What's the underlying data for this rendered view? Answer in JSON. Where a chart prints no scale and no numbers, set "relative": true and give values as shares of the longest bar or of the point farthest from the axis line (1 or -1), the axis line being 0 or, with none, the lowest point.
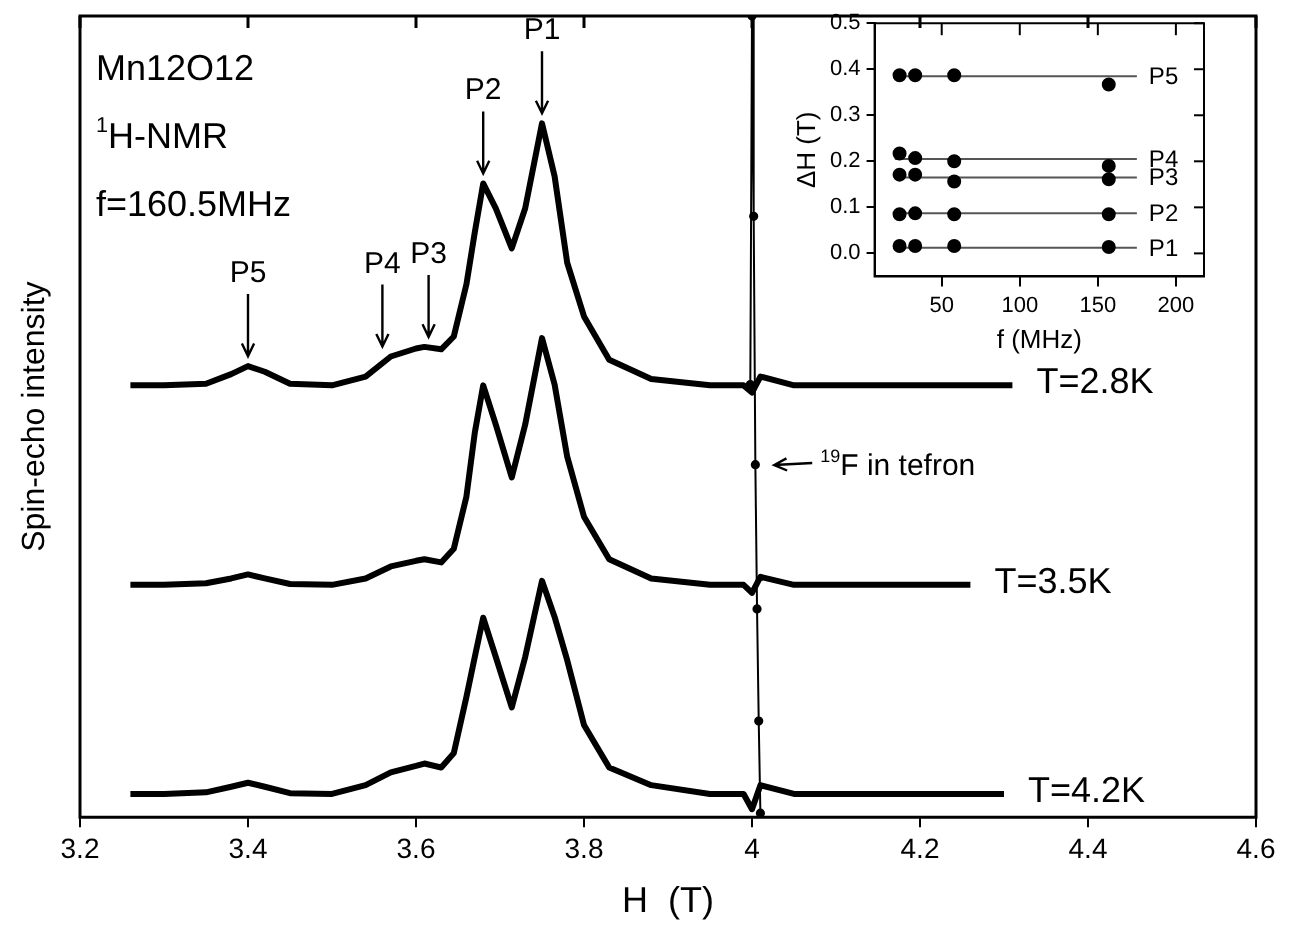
{
  "chart_data": [
    {
      "type": "line",
      "relative": true,
      "xlim": [
        3.2,
        4.6
      ],
      "xticks": [
        3.2,
        3.4,
        3.6,
        3.8,
        4.0,
        4.2,
        4.4,
        4.6
      ],
      "xlabel": "H  (T)",
      "ylabel": "Spin-echo intensity",
      "marker": "none",
      "series": [
        {
          "name": "T=2.8K",
          "color": "#000000",
          "x": [
            3.26,
            3.3,
            3.35,
            3.38,
            3.4,
            3.42,
            3.45,
            3.5,
            3.54,
            3.57,
            3.6,
            3.61,
            3.63,
            3.645,
            3.66,
            3.67,
            3.68,
            3.695,
            3.714,
            3.73,
            3.75,
            3.765,
            3.78,
            3.8,
            3.83,
            3.88,
            3.95,
            3.99,
            4.0,
            4.01,
            4.05,
            4.15,
            4.31
          ],
          "values": [
            0.539,
            0.539,
            0.541,
            0.553,
            0.563,
            0.556,
            0.541,
            0.539,
            0.55,
            0.575,
            0.585,
            0.587,
            0.584,
            0.6,
            0.665,
            0.73,
            0.791,
            0.76,
            0.71,
            0.76,
            0.866,
            0.8,
            0.692,
            0.625,
            0.571,
            0.547,
            0.539,
            0.539,
            0.53,
            0.55,
            0.539,
            0.539,
            0.539
          ]
        },
        {
          "name": "T=3.5K",
          "color": "#000000",
          "x": [
            3.26,
            3.3,
            3.35,
            3.38,
            3.4,
            3.42,
            3.45,
            3.5,
            3.54,
            3.57,
            3.6,
            3.61,
            3.63,
            3.645,
            3.66,
            3.67,
            3.68,
            3.695,
            3.714,
            3.73,
            3.75,
            3.765,
            3.78,
            3.8,
            3.83,
            3.88,
            3.95,
            3.99,
            4.0,
            4.01,
            4.05,
            4.15,
            4.26
          ],
          "values": [
            0.29,
            0.29,
            0.292,
            0.298,
            0.303,
            0.298,
            0.291,
            0.29,
            0.298,
            0.313,
            0.32,
            0.322,
            0.318,
            0.335,
            0.4,
            0.48,
            0.539,
            0.49,
            0.424,
            0.49,
            0.598,
            0.54,
            0.45,
            0.375,
            0.322,
            0.298,
            0.29,
            0.29,
            0.28,
            0.3,
            0.29,
            0.29,
            0.29
          ]
        },
        {
          "name": "T=4.2K",
          "color": "#000000",
          "x": [
            3.26,
            3.3,
            3.35,
            3.38,
            3.4,
            3.42,
            3.45,
            3.5,
            3.54,
            3.57,
            3.6,
            3.61,
            3.63,
            3.645,
            3.66,
            3.67,
            3.68,
            3.695,
            3.714,
            3.73,
            3.75,
            3.765,
            3.78,
            3.8,
            3.83,
            3.88,
            3.95,
            3.99,
            4.0,
            4.01,
            4.05,
            4.15,
            4.3
          ],
          "values": [
            0.029,
            0.029,
            0.031,
            0.038,
            0.043,
            0.038,
            0.03,
            0.029,
            0.04,
            0.056,
            0.064,
            0.067,
            0.062,
            0.08,
            0.15,
            0.2,
            0.249,
            0.2,
            0.137,
            0.2,
            0.295,
            0.25,
            0.196,
            0.115,
            0.062,
            0.04,
            0.029,
            0.029,
            0.01,
            0.04,
            0.029,
            0.029,
            0.029
          ]
        },
        {
          "color": "#000000",
          "marker": "circle",
          "x": [
            3.998,
            4.0,
            4.002,
            4.004,
            4.006,
            4.008,
            4.01
          ],
          "values": [
            0.54,
            1,
            0.75,
            0.44,
            0.26,
            0.12,
            0.005
          ]
        }
      ],
      "annotations": [
        "Mn12O12",
        "$^{1}$H-NMR",
        "f=160.5MHz",
        {
          "text": "P5",
          "x": 3.4,
          "y": 0.563
        },
        {
          "text": "P4",
          "x": 3.56,
          "y": 0.575
        },
        {
          "text": "P3",
          "x": 3.615,
          "y": 0.587
        },
        {
          "text": "P2",
          "x": 3.68,
          "y": 0.791
        },
        {
          "text": "P1",
          "x": 3.75,
          "y": 0.866
        },
        {
          "text": "$^{19}$F in tefron",
          "x": 4.005,
          "y": 0.442
        }
      ]
    },
    {
      "type": "scatter",
      "xlim": [
        7,
        218
      ],
      "xticks": [
        50,
        100,
        150,
        200
      ],
      "ylim": [
        -0.05,
        0.5
      ],
      "yticks": [
        {
          "value": 0,
          "label": "0.0"
        },
        {
          "value": 0.1,
          "label": "0.1"
        },
        {
          "value": 0.2,
          "label": "0.2"
        },
        {
          "value": 0.3,
          "label": "0.3"
        },
        {
          "value": 0.4,
          "label": "0.4"
        },
        {
          "value": 0.5,
          "label": "0.5"
        }
      ],
      "xlabel": "f (MHz)",
      "ylabel": "ΔH (T)",
      "marker": "circle",
      "series": [
        {
          "color": "#000000",
          "x": [
            23,
            33,
            58,
            157
          ],
          "values": [
            0.387,
            0.387,
            0.387,
            0.367
          ]
        },
        {
          "color": "#000000",
          "x": [
            23,
            33,
            58,
            157
          ],
          "values": [
            0.217,
            0.207,
            0.2,
            0.19
          ]
        },
        {
          "color": "#000000",
          "x": [
            23,
            33,
            58,
            157
          ],
          "values": [
            0.171,
            0.171,
            0.156,
            0.161
          ]
        },
        {
          "color": "#000000",
          "x": [
            23,
            33,
            58,
            157
          ],
          "values": [
            0.085,
            0.087,
            0.085,
            0.085
          ]
        },
        {
          "color": "#000000",
          "x": [
            23,
            33,
            58,
            157
          ],
          "values": [
            0.016,
            0.016,
            0.016,
            0.014
          ]
        },
        {
          "type": "line",
          "name": "P5",
          "color": "#555555",
          "marker": "none",
          "x": [
            20,
            175
          ],
          "values": [
            0.385,
            0.385
          ]
        },
        {
          "type": "line",
          "name": "P4",
          "color": "#555555",
          "marker": "none",
          "x": [
            20,
            175
          ],
          "values": [
            0.205,
            0.205
          ]
        },
        {
          "type": "line",
          "name": "P3",
          "color": "#555555",
          "marker": "none",
          "x": [
            20,
            175
          ],
          "values": [
            0.165,
            0.165
          ]
        },
        {
          "type": "line",
          "name": "P2",
          "color": "#555555",
          "marker": "none",
          "x": [
            20,
            175
          ],
          "values": [
            0.087,
            0.087
          ]
        },
        {
          "type": "line",
          "name": "P1",
          "color": "#555555",
          "marker": "none",
          "x": [
            20,
            175
          ],
          "values": [
            0.012,
            0.012
          ]
        }
      ]
    }
  ]
}
